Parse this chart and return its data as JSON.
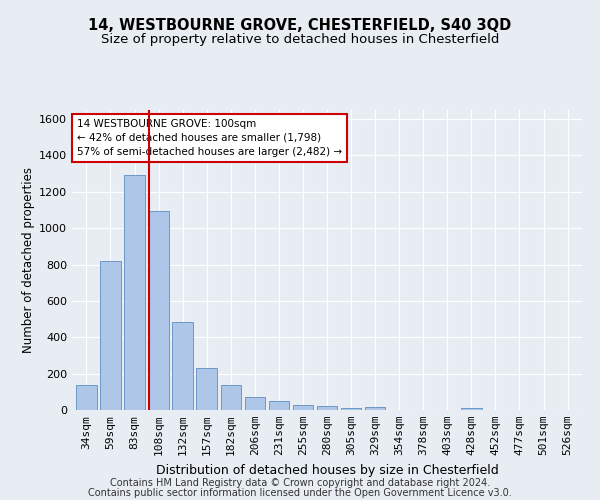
{
  "title": "14, WESTBOURNE GROVE, CHESTERFIELD, S40 3QD",
  "subtitle": "Size of property relative to detached houses in Chesterfield",
  "xlabel": "Distribution of detached houses by size in Chesterfield",
  "ylabel": "Number of detached properties",
  "categories": [
    "34sqm",
    "59sqm",
    "83sqm",
    "108sqm",
    "132sqm",
    "157sqm",
    "182sqm",
    "206sqm",
    "231sqm",
    "255sqm",
    "280sqm",
    "305sqm",
    "329sqm",
    "354sqm",
    "378sqm",
    "403sqm",
    "428sqm",
    "452sqm",
    "477sqm",
    "501sqm",
    "526sqm"
  ],
  "values": [
    140,
    820,
    1290,
    1095,
    485,
    233,
    135,
    70,
    48,
    30,
    20,
    12,
    15,
    0,
    0,
    0,
    12,
    0,
    0,
    0,
    0
  ],
  "bar_color": "#aec6e8",
  "bar_edge_color": "#5b8ec4",
  "vline_color": "#cc0000",
  "annotation_line1": "14 WESTBOURNE GROVE: 100sqm",
  "annotation_line2": "← 42% of detached houses are smaller (1,798)",
  "annotation_line3": "57% of semi-detached houses are larger (2,482) →",
  "annotation_box_color": "#ffffff",
  "annotation_box_edge_color": "#cc0000",
  "ylim": [
    0,
    1650
  ],
  "yticks": [
    0,
    200,
    400,
    600,
    800,
    1000,
    1200,
    1400,
    1600
  ],
  "background_color": "#e8edf4",
  "grid_color": "#ffffff",
  "footer_line1": "Contains HM Land Registry data © Crown copyright and database right 2024.",
  "footer_line2": "Contains public sector information licensed under the Open Government Licence v3.0.",
  "title_fontsize": 10.5,
  "subtitle_fontsize": 9.5,
  "xlabel_fontsize": 9,
  "ylabel_fontsize": 8.5,
  "tick_fontsize": 8,
  "annotation_fontsize": 7.5,
  "footer_fontsize": 7
}
